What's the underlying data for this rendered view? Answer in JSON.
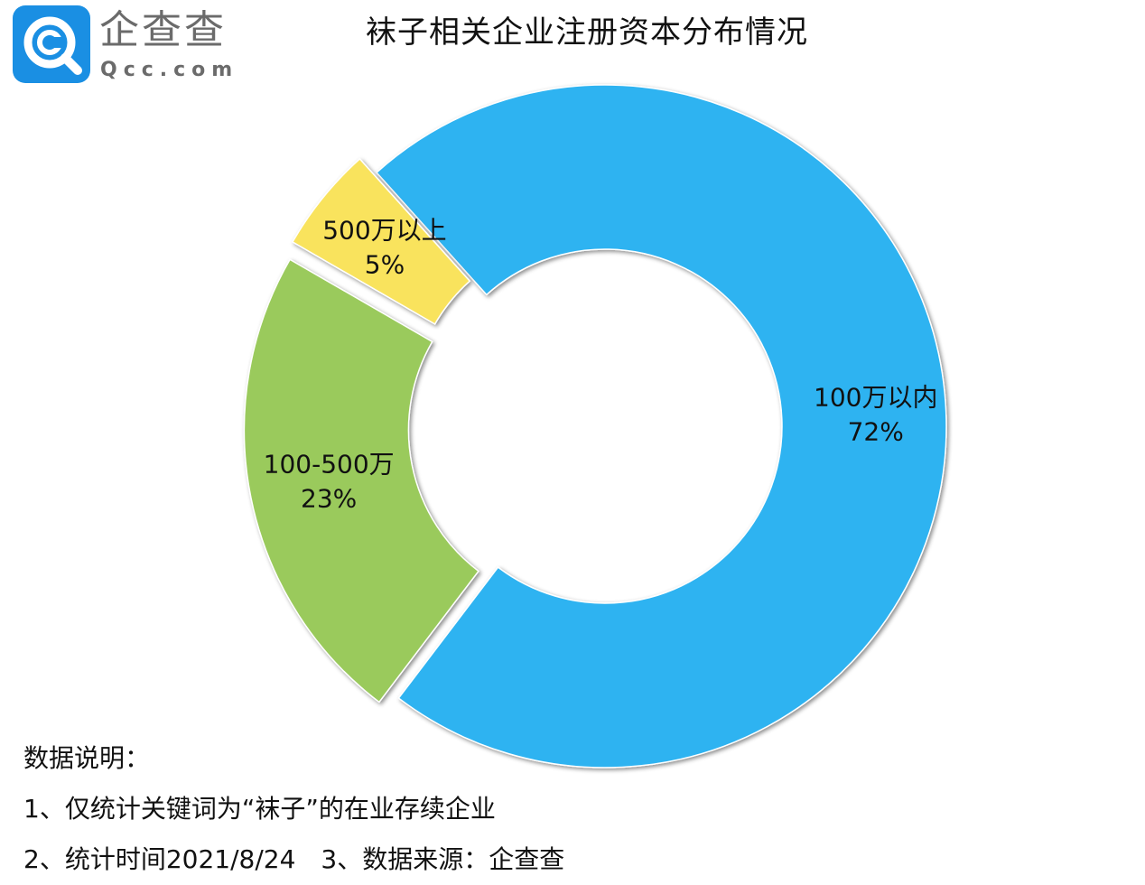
{
  "logo": {
    "name": "企查查",
    "domain": "Qcc.com",
    "icon": "qcc-magnifier-icon"
  },
  "chart_data": {
    "type": "pie",
    "variant": "donut-exploded",
    "title": "袜子相关企业注册资本分布情况",
    "slices": [
      {
        "label": "100万以内",
        "value": 72,
        "percent_label": "72%",
        "color": "#2db3f1"
      },
      {
        "label": "100-500万",
        "value": 23,
        "percent_label": "23%",
        "color": "#9aca5c"
      },
      {
        "label": "500万以上",
        "value": 5,
        "percent_label": "5%",
        "color": "#f9e35d"
      }
    ],
    "legend": "none"
  },
  "notes": {
    "heading": "数据说明：",
    "line1": "1、仅统计关键词为“袜子”的在业存续企业",
    "line2": "2、统计时间2021/8/24　3、数据来源：企查查"
  }
}
